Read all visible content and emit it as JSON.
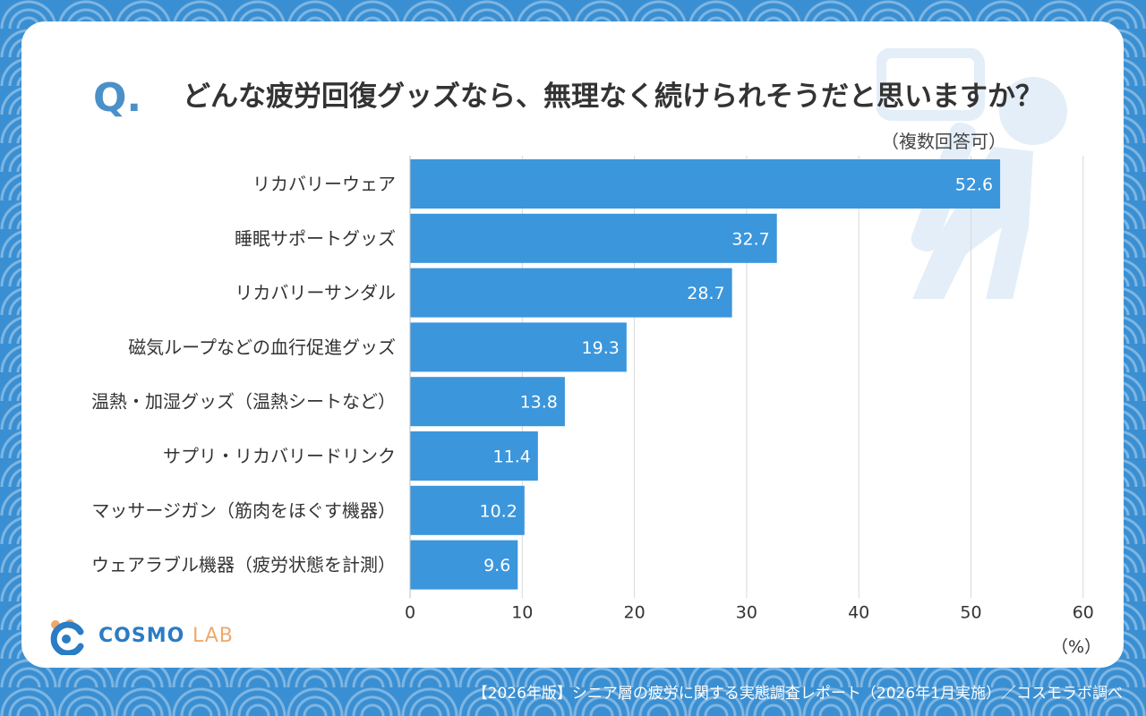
{
  "question": {
    "mark": "Q",
    "dot": ".",
    "text": "どんな疲労回復グッズなら、無理なく続けられそうだと思いますか？",
    "note": "（複数回答可）"
  },
  "chart_data": {
    "type": "bar",
    "orientation": "horizontal",
    "title": "どんな疲労回復グッズなら、無理なく続けられそうだと思いますか？",
    "categories": [
      "リカバリーウェア",
      "睡眠サポートグッズ",
      "リカバリーサンダル",
      "磁気ループなどの血行促進グッズ",
      "温熱・加湿グッズ（温熱シートなど）",
      "サプリ・リカバリードリンク",
      "マッサージガン（筋肉をほぐす機器）",
      "ウェアラブル機器（疲労状態を計測）"
    ],
    "values": [
      52.6,
      32.7,
      28.7,
      19.3,
      13.8,
      11.4,
      10.2,
      9.6
    ],
    "value_labels": [
      "52.6",
      "32.7",
      "28.7",
      "19.3",
      "13.8",
      "11.4",
      "10.2",
      "9.6"
    ],
    "xlim": [
      0,
      60
    ],
    "xticks": [
      "0",
      "10",
      "20",
      "30",
      "40",
      "50",
      "60"
    ],
    "xtick_values": [
      0,
      10,
      20,
      30,
      40,
      50,
      60
    ],
    "xlabel": "（%）",
    "grid": true,
    "bar_color": "#3b96dc"
  },
  "logo": {
    "main": "COSMO",
    "sub": "LAB"
  },
  "footer": "【2026年版】シニア層の疲労に関する実態調査レポート（2026年1月実施）／コスモラボ調べ",
  "colors": {
    "background": "#3a8fd2",
    "accent": "#4a90c9",
    "bar": "#3b96dc",
    "logo_orange": "#f0a86a"
  }
}
